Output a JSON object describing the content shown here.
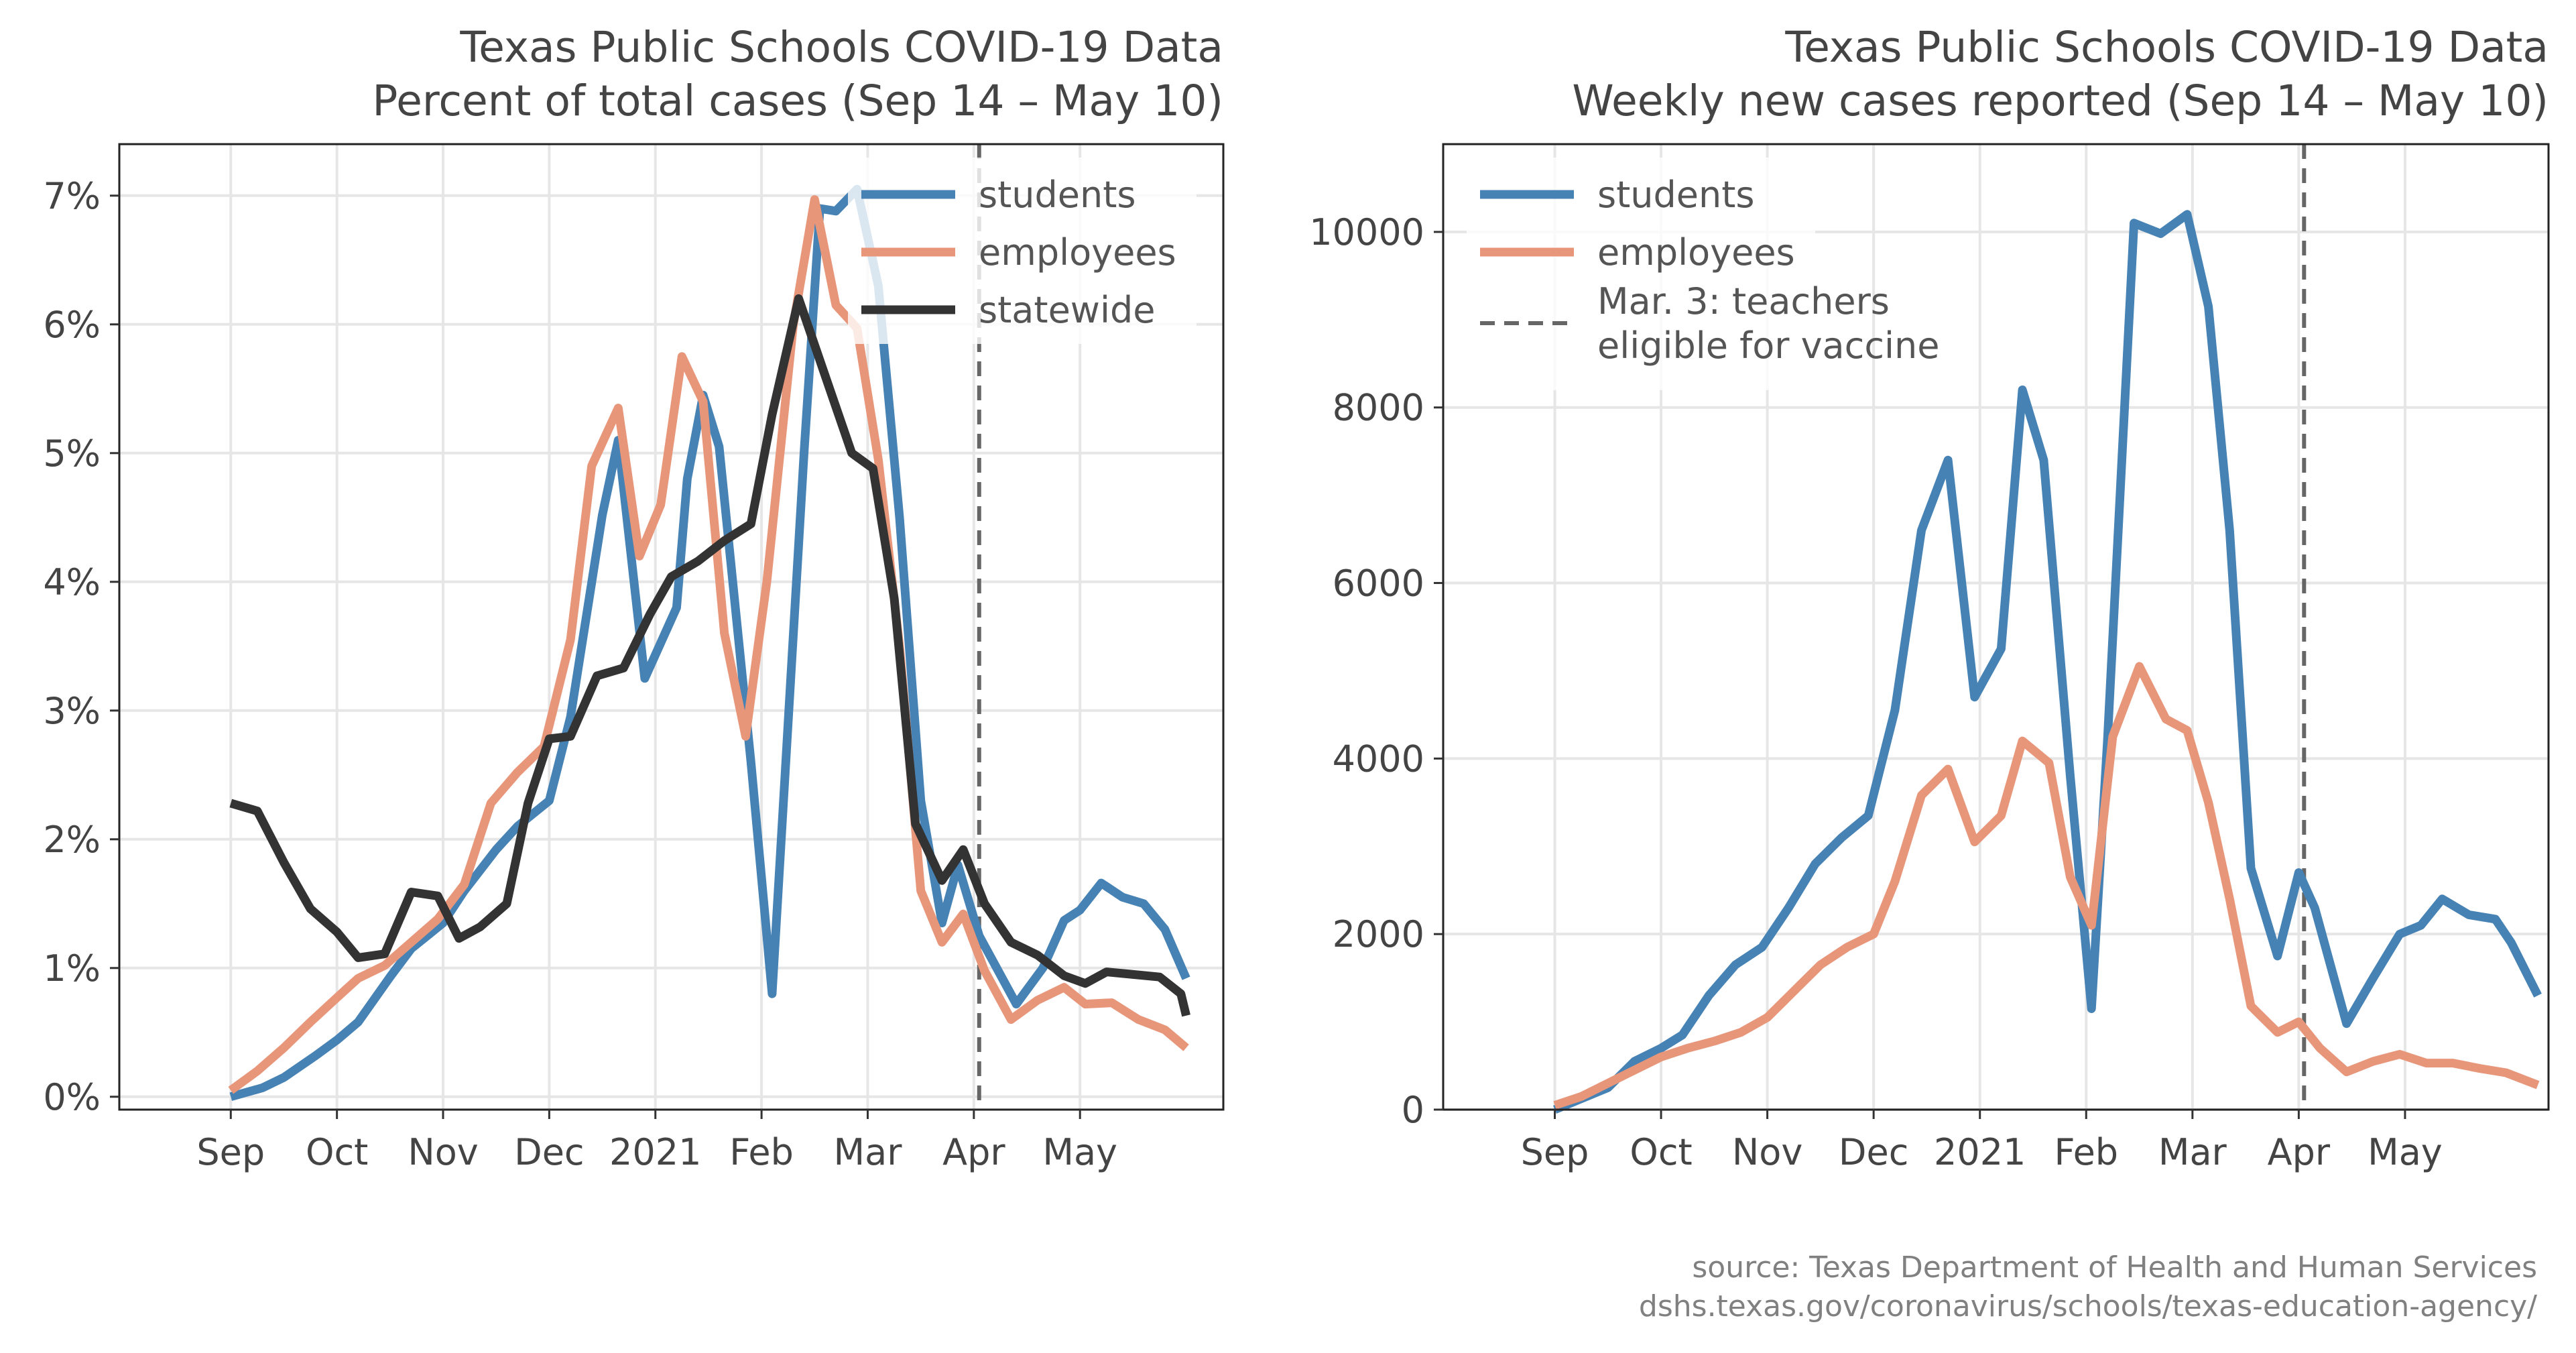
{
  "chart_data": [
    {
      "type": "line",
      "title": "Texas Public Schools COVID-19 Data",
      "subtitle": "Percent of total cases (Sep 14 – May 10)",
      "xlabel": "",
      "ylabel": "",
      "x_tick_labels": [
        "Sep",
        "Oct",
        "Nov",
        "Dec",
        "2021",
        "Feb",
        "Mar",
        "Apr",
        "May"
      ],
      "y_tick_labels": [
        "0%",
        "1%",
        "2%",
        "3%",
        "4%",
        "5%",
        "6%",
        "7%"
      ],
      "ylim": [
        -0.1,
        7.4
      ],
      "y_ticks": [
        0,
        1,
        2,
        3,
        4,
        5,
        6,
        7
      ],
      "grid": true,
      "legend_position": "top-right",
      "vline": {
        "x": 7.05,
        "label": ""
      },
      "series": [
        {
          "name": "students",
          "color": "#4682b4",
          "points": [
            [
              0,
              0.0
            ],
            [
              0.3,
              0.07
            ],
            [
              0.5,
              0.15
            ],
            [
              0.8,
              0.32
            ],
            [
              1.0,
              0.44
            ],
            [
              1.2,
              0.58
            ],
            [
              1.5,
              0.93
            ],
            [
              1.7,
              1.15
            ],
            [
              2.0,
              1.35
            ],
            [
              2.2,
              1.6
            ],
            [
              2.5,
              1.92
            ],
            [
              2.7,
              2.1
            ],
            [
              3.0,
              2.3
            ],
            [
              3.2,
              2.95
            ],
            [
              3.5,
              4.52
            ],
            [
              3.65,
              5.1
            ],
            [
              3.9,
              3.25
            ],
            [
              4.2,
              3.8
            ],
            [
              4.3,
              4.8
            ],
            [
              4.45,
              5.45
            ],
            [
              4.6,
              5.05
            ],
            [
              4.9,
              2.6
            ],
            [
              5.1,
              0.8
            ],
            [
              5.4,
              5.0
            ],
            [
              5.55,
              6.9
            ],
            [
              5.7,
              6.88
            ],
            [
              5.9,
              7.05
            ],
            [
              6.1,
              6.3
            ],
            [
              6.3,
              4.5
            ],
            [
              6.5,
              2.3
            ],
            [
              6.7,
              1.35
            ],
            [
              6.85,
              1.8
            ],
            [
              7.05,
              1.25
            ],
            [
              7.4,
              0.72
            ],
            [
              7.65,
              1.0
            ],
            [
              7.85,
              1.37
            ],
            [
              8.0,
              1.45
            ],
            [
              8.2,
              1.66
            ],
            [
              8.4,
              1.55
            ],
            [
              8.6,
              1.5
            ],
            [
              8.8,
              1.3
            ],
            [
              9.0,
              0.92
            ]
          ]
        },
        {
          "name": "employees",
          "color": "#e8967a",
          "points": [
            [
              0,
              0.05
            ],
            [
              0.25,
              0.2
            ],
            [
              0.5,
              0.38
            ],
            [
              0.75,
              0.58
            ],
            [
              1.0,
              0.77
            ],
            [
              1.2,
              0.92
            ],
            [
              1.45,
              1.02
            ],
            [
              1.7,
              1.2
            ],
            [
              1.95,
              1.38
            ],
            [
              2.2,
              1.65
            ],
            [
              2.45,
              2.28
            ],
            [
              2.7,
              2.52
            ],
            [
              2.95,
              2.72
            ],
            [
              3.2,
              3.55
            ],
            [
              3.4,
              4.9
            ],
            [
              3.65,
              5.35
            ],
            [
              3.85,
              4.2
            ],
            [
              4.05,
              4.6
            ],
            [
              4.25,
              5.75
            ],
            [
              4.45,
              5.4
            ],
            [
              4.65,
              3.6
            ],
            [
              4.85,
              2.8
            ],
            [
              5.05,
              4.0
            ],
            [
              5.3,
              6.0
            ],
            [
              5.5,
              6.97
            ],
            [
              5.7,
              6.15
            ],
            [
              5.9,
              5.97
            ],
            [
              6.1,
              4.95
            ],
            [
              6.3,
              3.5
            ],
            [
              6.5,
              1.6
            ],
            [
              6.7,
              1.2
            ],
            [
              6.9,
              1.42
            ],
            [
              7.1,
              0.98
            ],
            [
              7.35,
              0.6
            ],
            [
              7.6,
              0.75
            ],
            [
              7.85,
              0.85
            ],
            [
              8.05,
              0.72
            ],
            [
              8.3,
              0.73
            ],
            [
              8.55,
              0.6
            ],
            [
              8.8,
              0.52
            ],
            [
              9.0,
              0.38
            ]
          ]
        },
        {
          "name": "statewide",
          "color": "#333333",
          "points": [
            [
              0,
              2.28
            ],
            [
              0.25,
              2.22
            ],
            [
              0.5,
              1.82
            ],
            [
              0.75,
              1.46
            ],
            [
              1.0,
              1.28
            ],
            [
              1.2,
              1.08
            ],
            [
              1.45,
              1.11
            ],
            [
              1.7,
              1.59
            ],
            [
              1.95,
              1.56
            ],
            [
              2.15,
              1.23
            ],
            [
              2.35,
              1.32
            ],
            [
              2.6,
              1.5
            ],
            [
              2.8,
              2.28
            ],
            [
              3.0,
              2.78
            ],
            [
              3.2,
              2.8
            ],
            [
              3.45,
              3.27
            ],
            [
              3.7,
              3.33
            ],
            [
              3.95,
              3.75
            ],
            [
              4.15,
              4.04
            ],
            [
              4.4,
              4.16
            ],
            [
              4.65,
              4.32
            ],
            [
              4.9,
              4.45
            ],
            [
              5.1,
              5.3
            ],
            [
              5.35,
              6.2
            ],
            [
              5.6,
              5.6
            ],
            [
              5.85,
              5.0
            ],
            [
              6.05,
              4.88
            ],
            [
              6.25,
              3.87
            ],
            [
              6.45,
              2.12
            ],
            [
              6.7,
              1.68
            ],
            [
              6.9,
              1.92
            ],
            [
              7.1,
              1.5
            ],
            [
              7.35,
              1.2
            ],
            [
              7.6,
              1.1
            ],
            [
              7.85,
              0.94
            ],
            [
              8.05,
              0.88
            ],
            [
              8.25,
              0.97
            ],
            [
              8.5,
              0.95
            ],
            [
              8.75,
              0.93
            ],
            [
              8.95,
              0.8
            ],
            [
              9.0,
              0.63
            ]
          ]
        }
      ]
    },
    {
      "type": "line",
      "title": "Texas Public Schools COVID-19 Data",
      "subtitle": "Weekly new cases reported (Sep 14 – May 10)",
      "xlabel": "",
      "ylabel": "",
      "x_tick_labels": [
        "Sep",
        "Oct",
        "Nov",
        "Dec",
        "2021",
        "Feb",
        "Mar",
        "Apr",
        "May"
      ],
      "y_tick_labels": [
        "0",
        "2000",
        "4000",
        "6000",
        "8000",
        "10000"
      ],
      "ylim": [
        0,
        11000
      ],
      "y_ticks": [
        0,
        2000,
        4000,
        6000,
        8000,
        10000
      ],
      "grid": true,
      "legend_position": "top-left",
      "vline": {
        "x": 7.05,
        "label": "Mar. 3: teachers eligible for vaccine",
        "label_lines": [
          "Mar. 3: teachers",
          "eligible for vaccine"
        ]
      },
      "series": [
        {
          "name": "students",
          "color": "#4682b4",
          "points": [
            [
              0,
              0
            ],
            [
              0.5,
              250
            ],
            [
              0.75,
              550
            ],
            [
              1.0,
              700
            ],
            [
              1.2,
              850
            ],
            [
              1.45,
              1300
            ],
            [
              1.7,
              1650
            ],
            [
              1.95,
              1850
            ],
            [
              2.2,
              2300
            ],
            [
              2.45,
              2800
            ],
            [
              2.7,
              3100
            ],
            [
              2.95,
              3350
            ],
            [
              3.2,
              4550
            ],
            [
              3.45,
              6600
            ],
            [
              3.7,
              7400
            ],
            [
              3.95,
              4700
            ],
            [
              4.2,
              5250
            ],
            [
              4.4,
              8200
            ],
            [
              4.6,
              7400
            ],
            [
              4.85,
              3800
            ],
            [
              5.05,
              1150
            ],
            [
              5.2,
              4200
            ],
            [
              5.45,
              10100
            ],
            [
              5.7,
              9980
            ],
            [
              5.95,
              10200
            ],
            [
              6.15,
              9150
            ],
            [
              6.35,
              6600
            ],
            [
              6.55,
              2750
            ],
            [
              6.8,
              1750
            ],
            [
              7.0,
              2700
            ],
            [
              7.15,
              2300
            ],
            [
              7.45,
              980
            ],
            [
              7.7,
              1500
            ],
            [
              7.95,
              2000
            ],
            [
              8.15,
              2100
            ],
            [
              8.35,
              2400
            ],
            [
              8.6,
              2220
            ],
            [
              8.85,
              2170
            ],
            [
              9.0,
              1900
            ],
            [
              9.25,
              1300
            ]
          ]
        },
        {
          "name": "employees",
          "color": "#e8967a",
          "points": [
            [
              0,
              50
            ],
            [
              0.25,
              150
            ],
            [
              0.5,
              300
            ],
            [
              0.75,
              450
            ],
            [
              1.0,
              600
            ],
            [
              1.25,
              700
            ],
            [
              1.5,
              780
            ],
            [
              1.75,
              880
            ],
            [
              2.0,
              1050
            ],
            [
              2.25,
              1350
            ],
            [
              2.5,
              1650
            ],
            [
              2.75,
              1850
            ],
            [
              3.0,
              2000
            ],
            [
              3.2,
              2600
            ],
            [
              3.45,
              3580
            ],
            [
              3.7,
              3880
            ],
            [
              3.95,
              3050
            ],
            [
              4.2,
              3350
            ],
            [
              4.4,
              4200
            ],
            [
              4.65,
              3950
            ],
            [
              4.85,
              2650
            ],
            [
              5.05,
              2100
            ],
            [
              5.25,
              4250
            ],
            [
              5.5,
              5050
            ],
            [
              5.75,
              4450
            ],
            [
              5.95,
              4320
            ],
            [
              6.15,
              3500
            ],
            [
              6.35,
              2400
            ],
            [
              6.55,
              1180
            ],
            [
              6.8,
              880
            ],
            [
              7.0,
              1000
            ],
            [
              7.2,
              700
            ],
            [
              7.45,
              430
            ],
            [
              7.7,
              550
            ],
            [
              7.95,
              630
            ],
            [
              8.2,
              530
            ],
            [
              8.45,
              530
            ],
            [
              8.7,
              470
            ],
            [
              8.95,
              420
            ],
            [
              9.25,
              280
            ]
          ]
        }
      ]
    }
  ],
  "source": {
    "line1": "source: Texas Department of Health and Human Services",
    "line2": "dshs.texas.gov/coronavirus/schools/texas-education-agency/"
  }
}
